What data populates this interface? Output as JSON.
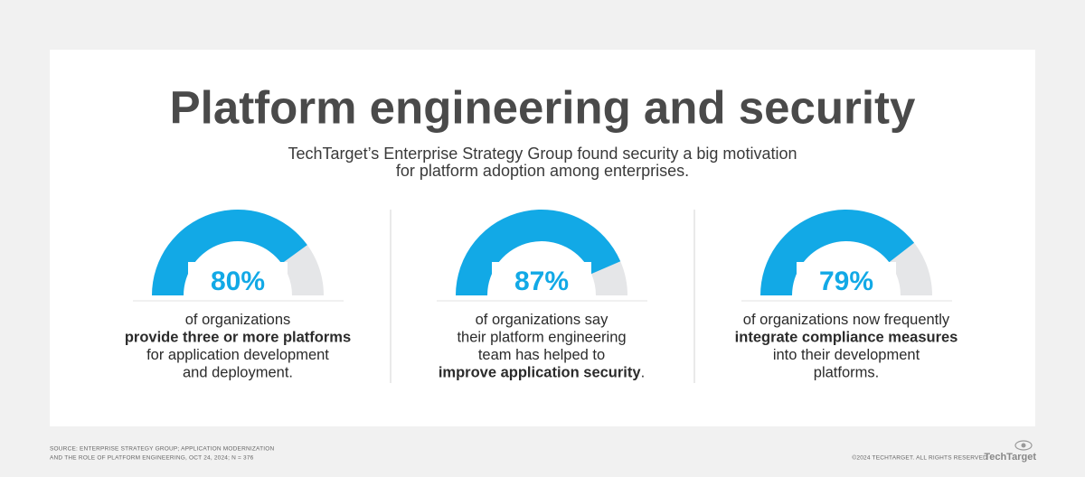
{
  "chart_data": {
    "type": "gauge",
    "title": "Platform engineering and security",
    "subtitle": [
      "TechTarget’s Enterprise Strategy Group found security a big motivation",
      "for platform adoption among enterprises."
    ],
    "ylim": [
      0,
      100
    ],
    "values": [
      80,
      87,
      79
    ],
    "value_labels": [
      "80%",
      "87%",
      "79%"
    ],
    "color": "#12a9e6",
    "track_color": "#e5e6e8",
    "descriptions": [
      [
        [
          {
            "text": "of organizations",
            "bold": false
          }
        ],
        [
          {
            "text": "provide three or more platforms",
            "bold": true
          }
        ],
        [
          {
            "text": "for application development",
            "bold": false
          }
        ],
        [
          {
            "text": "and deployment.",
            "bold": false
          }
        ]
      ],
      [
        [
          {
            "text": "of organizations say",
            "bold": false
          }
        ],
        [
          {
            "text": "their platform engineering",
            "bold": false
          }
        ],
        [
          {
            "text": "team has helped to",
            "bold": false
          }
        ],
        [
          {
            "text": "improve application security",
            "bold": true
          },
          {
            "text": ".",
            "bold": false
          }
        ]
      ],
      [
        [
          {
            "text": "of organizations now frequently",
            "bold": false
          }
        ],
        [
          {
            "text": "integrate compliance measures",
            "bold": true
          }
        ],
        [
          {
            "text": "into their development",
            "bold": false
          }
        ],
        [
          {
            "text": "platforms.",
            "bold": false
          }
        ]
      ]
    ],
    "source": [
      "SOURCE: ENTERPRISE STRATEGY GROUP; APPLICATION MODERNIZATION",
      "AND THE ROLE OF PLATFORM ENGINEERING, OCT 24, 2024; N = 376"
    ],
    "copyright": "©2024 TECHTARGET. ALL RIGHTS RESERVED",
    "logo": "TechTarget"
  }
}
